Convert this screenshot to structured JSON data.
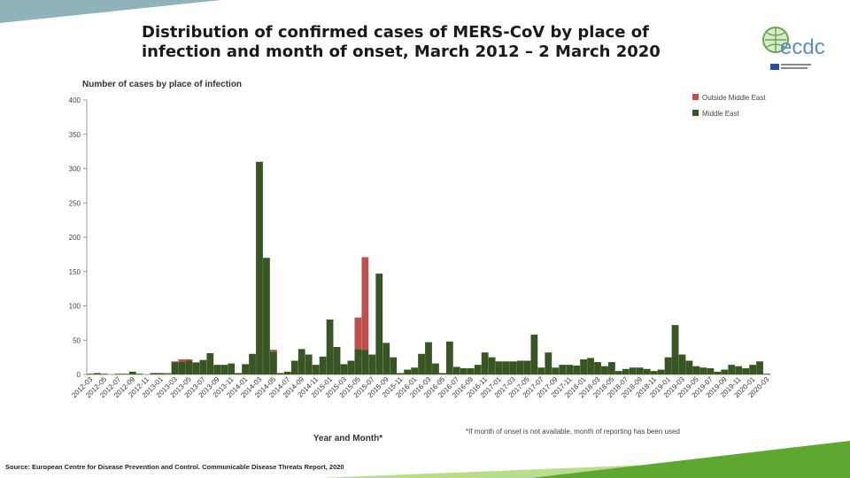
{
  "slide": {
    "title_line1": "Distribution of confirmed cases of MERS-CoV by place of",
    "title_line2": "infection and month of onset, March 2012 – 2 March 2020",
    "source": "Source: European Centre for Disease Prevention and Control. Communicable Disease Threats Report, 2020",
    "logo_text": "ecdc",
    "colors": {
      "middle_east": "#375623",
      "outside": "#c0504d",
      "accent_green": "#5ea832"
    }
  },
  "chart_data": {
    "type": "bar",
    "stacked": true,
    "ylabel": "Number of cases by place of infection",
    "xlabel": "Year and Month*",
    "note": "*If month of onset is not available, month of reporting has been used",
    "ylim": [
      0,
      400
    ],
    "yticks": [
      0,
      50,
      100,
      150,
      200,
      250,
      300,
      350,
      400
    ],
    "legend_position": "top-right",
    "categories": [
      "2012-03",
      "2012-04",
      "2012-05",
      "2012-06",
      "2012-07",
      "2012-08",
      "2012-09",
      "2012-10",
      "2012-11",
      "2012-12",
      "2013-01",
      "2013-02",
      "2013-03",
      "2013-04",
      "2013-05",
      "2013-06",
      "2013-07",
      "2013-08",
      "2013-09",
      "2013-10",
      "2013-11",
      "2013-12",
      "2014-01",
      "2014-02",
      "2014-03",
      "2014-04",
      "2014-05",
      "2014-06",
      "2014-07",
      "2014-08",
      "2014-09",
      "2014-10",
      "2014-11",
      "2014-12",
      "2015-01",
      "2015-02",
      "2015-03",
      "2015-04",
      "2015-05",
      "2015-06",
      "2015-07",
      "2015-08",
      "2015-09",
      "2015-10",
      "2015-11",
      "2015-12",
      "2016-01",
      "2016-02",
      "2016-03",
      "2016-04",
      "2016-05",
      "2016-06",
      "2016-07",
      "2016-08",
      "2016-09",
      "2016-10",
      "2016-11",
      "2016-12",
      "2017-01",
      "2017-02",
      "2017-03",
      "2017-04",
      "2017-05",
      "2017-06",
      "2017-07",
      "2017-08",
      "2017-09",
      "2017-10",
      "2017-11",
      "2017-12",
      "2018-01",
      "2018-02",
      "2018-03",
      "2018-04",
      "2018-05",
      "2018-06",
      "2018-07",
      "2018-08",
      "2018-09",
      "2018-10",
      "2018-11",
      "2018-12",
      "2019-01",
      "2019-02",
      "2019-03",
      "2019-04",
      "2019-05",
      "2019-06",
      "2019-07",
      "2019-08",
      "2019-09",
      "2019-10",
      "2019-11",
      "2019-12",
      "2020-01",
      "2020-02",
      "2020-03"
    ],
    "xtick_labels": [
      "2012-03",
      "2012-05",
      "2012-07",
      "2012-09",
      "2012-11",
      "2013-01",
      "2013-03",
      "2013-05",
      "2013-07",
      "2013-09",
      "2013-11",
      "2014-01",
      "2014-03",
      "2014-05",
      "2014-07",
      "2014-09",
      "2014-11",
      "2015-01",
      "2015-03",
      "2015-05",
      "2015-07",
      "2015-09",
      "2015-11",
      "2016-01",
      "2016-03",
      "2016-05",
      "2016-07",
      "2016-09",
      "2016-11",
      "2017-01",
      "2017-03",
      "2017-05",
      "2017-07",
      "2017-09",
      "2017-11",
      "2018-01",
      "2018-03",
      "2018-05",
      "2018-07",
      "2018-09",
      "2018-11",
      "2019-01",
      "2019-03",
      "2019-05",
      "2019-07",
      "2019-09",
      "2019-11",
      "2020-01",
      "2020-03"
    ],
    "series": [
      {
        "name": "Outside Middle East",
        "color": "#c0504d",
        "values": [
          0,
          0,
          0,
          0,
          0,
          0,
          0,
          0,
          0,
          0,
          0,
          1,
          1,
          3,
          2,
          1,
          0,
          0,
          0,
          0,
          0,
          0,
          0,
          0,
          0,
          0,
          3,
          0,
          0,
          0,
          0,
          0,
          0,
          0,
          0,
          0,
          0,
          0,
          46,
          135,
          0,
          0,
          0,
          0,
          0,
          0,
          0,
          0,
          0,
          0,
          0,
          0,
          0,
          0,
          0,
          0,
          0,
          0,
          0,
          0,
          0,
          0,
          0,
          0,
          0,
          0,
          0,
          0,
          0,
          0,
          0,
          0,
          0,
          0,
          0,
          0,
          0,
          0,
          0,
          0,
          0,
          0,
          0,
          0,
          0,
          0,
          0,
          0,
          0,
          0,
          0,
          0,
          0,
          0,
          0,
          0,
          0
        ]
      },
      {
        "name": "Middle East",
        "color": "#375623",
        "values": [
          1,
          2,
          1,
          0,
          1,
          1,
          4,
          1,
          0,
          2,
          2,
          1,
          18,
          19,
          20,
          17,
          21,
          31,
          14,
          14,
          16,
          2,
          15,
          30,
          310,
          170,
          33,
          2,
          4,
          20,
          37,
          29,
          14,
          26,
          80,
          40,
          15,
          20,
          37,
          36,
          29,
          147,
          46,
          25,
          2,
          7,
          10,
          30,
          47,
          16,
          2,
          48,
          11,
          9,
          9,
          14,
          32,
          25,
          19,
          19,
          19,
          20,
          20,
          58,
          10,
          32,
          10,
          14,
          14,
          13,
          22,
          24,
          18,
          12,
          18,
          5,
          8,
          10,
          10,
          8,
          5,
          7,
          25,
          72,
          29,
          20,
          12,
          10,
          9,
          4,
          7,
          14,
          12,
          9,
          14,
          19,
          1
        ]
      }
    ]
  }
}
